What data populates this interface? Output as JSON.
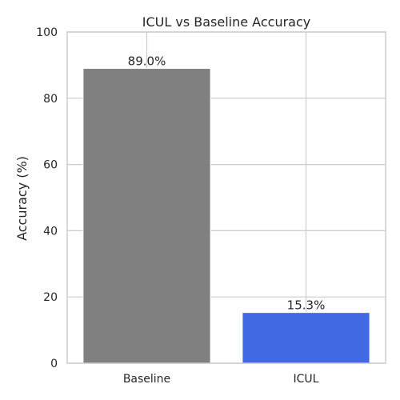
{
  "chart_data": {
    "type": "bar",
    "title": "ICUL vs Baseline Accuracy",
    "xlabel": "",
    "ylabel": "Accuracy (%)",
    "categories": [
      "Baseline",
      "ICUL"
    ],
    "values": [
      89.0,
      15.3
    ],
    "value_labels": [
      "89.0%",
      "15.3%"
    ],
    "colors": [
      "#808080",
      "#4169e1"
    ],
    "ylim": [
      0,
      100
    ],
    "yticks": [
      0,
      20,
      40,
      60,
      80,
      100
    ],
    "grid": true,
    "legend": "none"
  }
}
